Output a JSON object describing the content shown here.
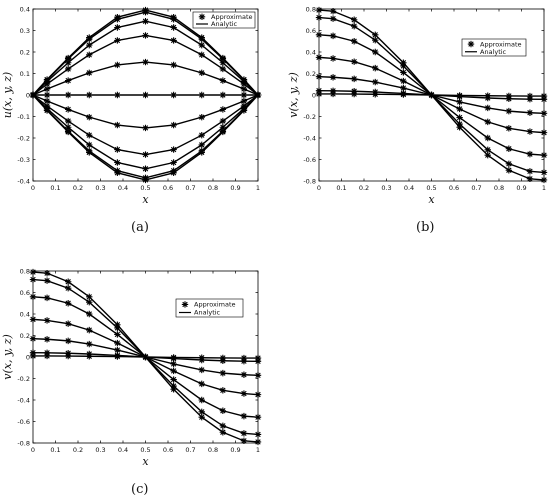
{
  "panel_labels": [
    "(a)",
    "(b)",
    "(c)"
  ],
  "legend": {
    "approximate": "Approximate",
    "analytic": "Analytic"
  },
  "chart_data": [
    {
      "type": "line",
      "xlabel": "x",
      "ylabel": "u(x, y, z)",
      "xlim": [
        0,
        1
      ],
      "ylim": [
        -0.4,
        0.4
      ],
      "xticks": [
        0,
        0.1,
        0.2,
        0.3,
        0.4,
        0.5,
        0.6,
        0.7,
        0.8,
        0.9,
        1
      ],
      "xtick_labels": [
        "0",
        "0.1",
        "0.2",
        "0.3",
        "0.4",
        "0.5",
        "0.6",
        "0.7",
        "0.8",
        "0.9",
        "1"
      ],
      "yticks": [
        -0.4,
        -0.3,
        -0.2,
        -0.1,
        0,
        0.1,
        0.2,
        0.3,
        0.4
      ],
      "ytick_labels": [
        "-0.4",
        "-0.3",
        "-0.2",
        "-0.1",
        "0",
        "0.1",
        "0.2",
        "0.3",
        "0.4"
      ],
      "legend_position": "top-right",
      "grid": false,
      "x": [
        0,
        0.0625,
        0.1563,
        0.25,
        0.375,
        0.5,
        0.625,
        0.75,
        0.8438,
        0.9375,
        1
      ],
      "series": [
        {
          "values": [
            0,
            0.072,
            0.172,
            0.267,
            0.362,
            0.395,
            0.362,
            0.267,
            0.172,
            0.072,
            0
          ]
        },
        {
          "values": [
            0,
            0.07,
            0.168,
            0.26,
            0.352,
            0.385,
            0.352,
            0.26,
            0.168,
            0.07,
            0
          ]
        },
        {
          "values": [
            0,
            0.063,
            0.15,
            0.232,
            0.314,
            0.343,
            0.314,
            0.232,
            0.15,
            0.063,
            0
          ]
        },
        {
          "values": [
            0,
            0.051,
            0.121,
            0.187,
            0.254,
            0.277,
            0.254,
            0.187,
            0.121,
            0.051,
            0
          ]
        },
        {
          "values": [
            0,
            0.028,
            0.067,
            0.103,
            0.14,
            0.153,
            0.14,
            0.103,
            0.067,
            0.028,
            0
          ]
        },
        {
          "values": [
            0,
            0,
            0,
            0,
            0,
            0,
            0,
            0,
            0,
            0,
            0
          ]
        },
        {
          "values": [
            0,
            -0.028,
            -0.067,
            -0.103,
            -0.14,
            -0.153,
            -0.14,
            -0.103,
            -0.067,
            -0.028,
            0
          ]
        },
        {
          "values": [
            0,
            -0.051,
            -0.121,
            -0.187,
            -0.254,
            -0.277,
            -0.254,
            -0.187,
            -0.121,
            -0.051,
            0
          ]
        },
        {
          "values": [
            0,
            -0.063,
            -0.15,
            -0.232,
            -0.314,
            -0.343,
            -0.314,
            -0.232,
            -0.15,
            -0.063,
            0
          ]
        },
        {
          "values": [
            0,
            -0.07,
            -0.168,
            -0.26,
            -0.352,
            -0.385,
            -0.352,
            -0.26,
            -0.168,
            -0.07,
            0
          ]
        },
        {
          "values": [
            0,
            -0.072,
            -0.172,
            -0.267,
            -0.362,
            -0.395,
            -0.362,
            -0.267,
            -0.172,
            -0.072,
            0
          ]
        }
      ]
    },
    {
      "type": "line",
      "xlabel": "x",
      "ylabel": "v(x, y, z)",
      "xlim": [
        0,
        1
      ],
      "ylim": [
        -0.8,
        0.8
      ],
      "xticks": [
        0,
        0.1,
        0.2,
        0.3,
        0.4,
        0.5,
        0.6,
        0.7,
        0.8,
        0.9,
        1
      ],
      "xtick_labels": [
        "0",
        "0.1",
        "0.2",
        "0.3",
        "0.4",
        "0.5",
        "0.6",
        "0.7",
        "0.8",
        "0.9",
        "1"
      ],
      "yticks": [
        -0.8,
        -0.6,
        -0.4,
        -0.2,
        0,
        0.2,
        0.4,
        0.6,
        0.8
      ],
      "ytick_labels": [
        "-0.8",
        "-0.6",
        "-0.4",
        "-0.2",
        "0",
        "0.2",
        "0.4",
        "0.6",
        "0.8"
      ],
      "legend_position": "upper-right",
      "grid": false,
      "x": [
        0,
        0.0625,
        0.1563,
        0.25,
        0.375,
        0.5,
        0.625,
        0.75,
        0.8438,
        0.9375,
        1
      ],
      "series": [
        {
          "values": [
            0.79,
            0.78,
            0.7,
            0.56,
            0.3,
            0,
            -0.3,
            -0.56,
            -0.7,
            -0.78,
            -0.79
          ]
        },
        {
          "values": [
            0.72,
            0.71,
            0.64,
            0.51,
            0.27,
            0,
            -0.27,
            -0.51,
            -0.64,
            -0.71,
            -0.72
          ]
        },
        {
          "values": [
            0.56,
            0.55,
            0.5,
            0.4,
            0.21,
            0,
            -0.21,
            -0.4,
            -0.5,
            -0.55,
            -0.56
          ]
        },
        {
          "values": [
            0.35,
            0.34,
            0.31,
            0.25,
            0.13,
            0,
            -0.13,
            -0.25,
            -0.31,
            -0.34,
            -0.35
          ]
        },
        {
          "values": [
            0.17,
            0.165,
            0.15,
            0.12,
            0.065,
            0,
            -0.065,
            -0.12,
            -0.15,
            -0.165,
            -0.17
          ]
        },
        {
          "values": [
            0.04,
            0.039,
            0.035,
            0.028,
            0.015,
            0,
            -0.015,
            -0.028,
            -0.035,
            -0.039,
            -0.04
          ]
        },
        {
          "values": [
            0.01,
            0.01,
            0.009,
            0.007,
            0.004,
            0,
            -0.004,
            -0.007,
            -0.009,
            -0.01,
            -0.01
          ]
        }
      ]
    },
    {
      "type": "line",
      "xlabel": "x",
      "ylabel": "v(x, y, z)",
      "xlim": [
        0,
        1
      ],
      "ylim": [
        -0.8,
        0.8
      ],
      "xticks": [
        0,
        0.1,
        0.2,
        0.3,
        0.4,
        0.5,
        0.6,
        0.7,
        0.8,
        0.9,
        1
      ],
      "xtick_labels": [
        "0",
        "0.1",
        "0.2",
        "0.3",
        "0.4",
        "0.5",
        "0.6",
        "0.7",
        "0.8",
        "0.9",
        "1"
      ],
      "yticks": [
        -0.8,
        -0.6,
        -0.4,
        -0.2,
        0,
        0.2,
        0.4,
        0.6,
        0.8
      ],
      "ytick_labels": [
        "-0.8",
        "-0.6",
        "-0.4",
        "-0.2",
        "0",
        "0.2",
        "0.4",
        "0.6",
        "0.8"
      ],
      "legend_position": "upper-right",
      "grid": false,
      "x": [
        0,
        0.0625,
        0.1563,
        0.25,
        0.375,
        0.5,
        0.625,
        0.75,
        0.8438,
        0.9375,
        1
      ],
      "series": [
        {
          "values": [
            0.79,
            0.78,
            0.7,
            0.56,
            0.3,
            0,
            -0.3,
            -0.56,
            -0.7,
            -0.78,
            -0.79
          ]
        },
        {
          "values": [
            0.72,
            0.71,
            0.64,
            0.51,
            0.27,
            0,
            -0.27,
            -0.51,
            -0.64,
            -0.71,
            -0.72
          ]
        },
        {
          "values": [
            0.56,
            0.55,
            0.5,
            0.4,
            0.21,
            0,
            -0.21,
            -0.4,
            -0.5,
            -0.55,
            -0.56
          ]
        },
        {
          "values": [
            0.35,
            0.34,
            0.31,
            0.25,
            0.13,
            0,
            -0.13,
            -0.25,
            -0.31,
            -0.34,
            -0.35
          ]
        },
        {
          "values": [
            0.17,
            0.165,
            0.15,
            0.12,
            0.065,
            0,
            -0.065,
            -0.12,
            -0.15,
            -0.165,
            -0.17
          ]
        },
        {
          "values": [
            0.04,
            0.039,
            0.035,
            0.028,
            0.015,
            0,
            -0.015,
            -0.028,
            -0.035,
            -0.039,
            -0.04
          ]
        },
        {
          "values": [
            0.01,
            0.01,
            0.009,
            0.007,
            0.004,
            0,
            -0.004,
            -0.007,
            -0.009,
            -0.01,
            -0.01
          ]
        }
      ]
    }
  ]
}
